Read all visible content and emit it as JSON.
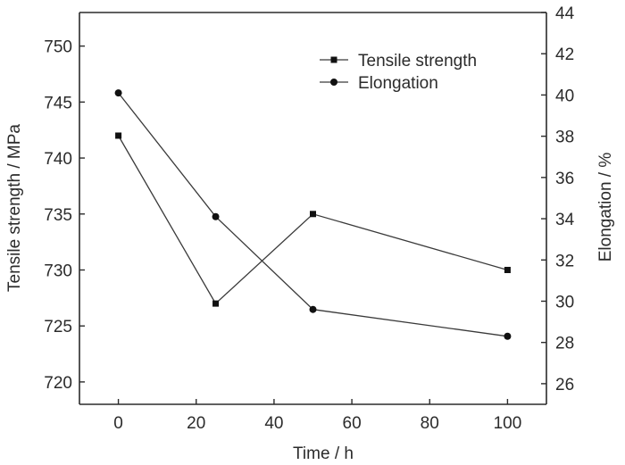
{
  "chart_data": {
    "type": "line",
    "xlabel": "Time / h",
    "ylabel_left": "Tensile strength / MPa",
    "ylabel_right": "Elongation / %",
    "x_ticks": [
      0,
      20,
      40,
      60,
      80,
      100
    ],
    "y_left_ticks": [
      720,
      725,
      730,
      735,
      740,
      745,
      750
    ],
    "y_right_ticks": [
      26,
      28,
      30,
      32,
      34,
      36,
      38,
      40,
      42,
      44
    ],
    "xlim": [
      -10,
      110
    ],
    "ylim_left": [
      718,
      753
    ],
    "ylim_right": [
      25,
      44
    ],
    "legend_position": "top-right",
    "series": [
      {
        "name": "Tensile strength",
        "axis": "left",
        "marker": "square",
        "x": [
          0,
          25,
          50,
          100
        ],
        "values": [
          742,
          727,
          735,
          730
        ]
      },
      {
        "name": "Elongation",
        "axis": "right",
        "marker": "circle",
        "x": [
          0,
          25,
          50,
          100
        ],
        "values": [
          40.1,
          34.1,
          29.6,
          28.3
        ]
      }
    ]
  }
}
